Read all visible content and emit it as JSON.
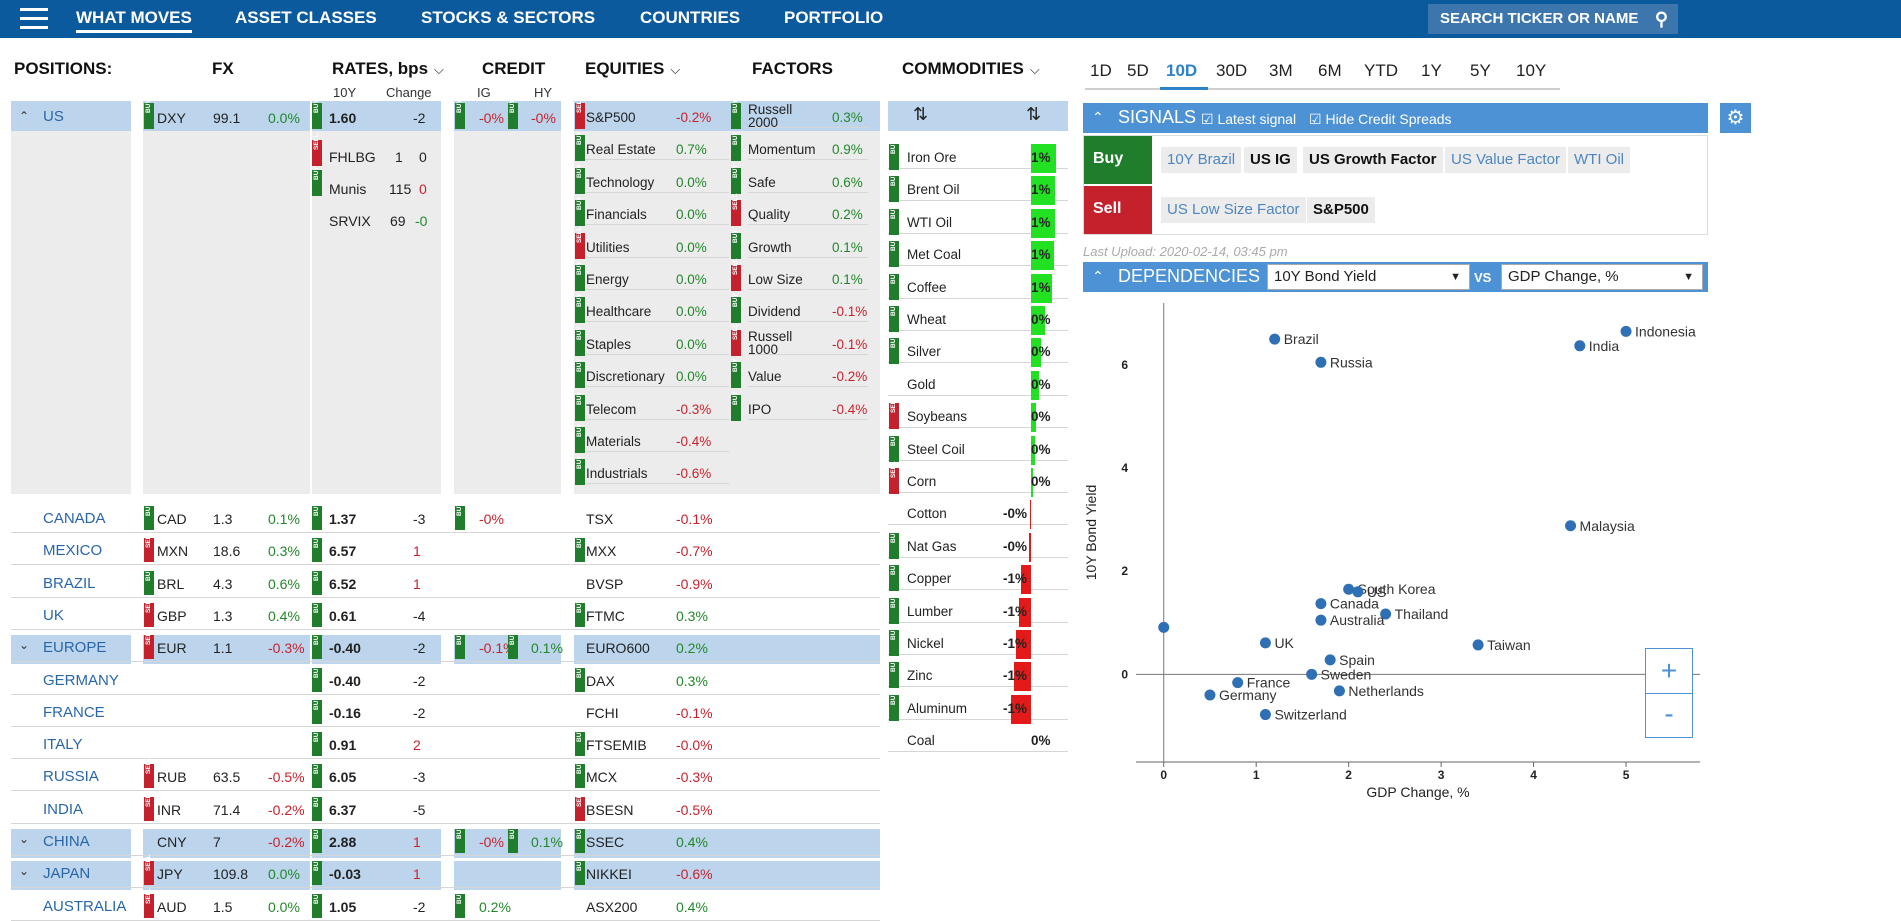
{
  "nav": {
    "items": [
      "WHAT MOVES",
      "ASSET CLASSES",
      "STOCKS & SECTORS",
      "COUNTRIES",
      "PORTFOLIO"
    ],
    "search_label": "SEARCH TICKER OR NAME"
  },
  "headers": {
    "positions": "POSITIONS:",
    "fx": "FX",
    "rates": "RATES, bps",
    "rates_10y": "10Y",
    "rates_change": "Change",
    "credit": "CREDIT",
    "credit_ig": "IG",
    "credit_hy": "HY",
    "equities": "EQUITIES",
    "factors": "FACTORS",
    "commodities": "COMMODITIES"
  },
  "tags": {
    "buy": "BUY",
    "sell": "SELL"
  },
  "us_block": {
    "country": "US",
    "fx": {
      "ticker": "DXY",
      "value": "99.1",
      "change": "0.0%"
    },
    "rates": [
      {
        "name": "",
        "value": "1.60",
        "change": "-2"
      },
      {
        "name": "FHLBG",
        "value": "1",
        "change": "0"
      },
      {
        "name": "Munis",
        "value": "115",
        "change": "0"
      },
      {
        "name": "SRVIX",
        "value": "69",
        "change": "-0"
      }
    ],
    "credit": {
      "ig": "-0%",
      "hy": "-0%"
    },
    "equities": [
      {
        "name": "S&P500",
        "value": "-0.2%"
      },
      {
        "name": "Real Estate",
        "value": "0.7%"
      },
      {
        "name": "Technology",
        "value": "0.0%"
      },
      {
        "name": "Financials",
        "value": "0.0%"
      },
      {
        "name": "Utilities",
        "value": "0.0%"
      },
      {
        "name": "Energy",
        "value": "0.0%"
      },
      {
        "name": "Healthcare",
        "value": "0.0%"
      },
      {
        "name": "Staples",
        "value": "0.0%"
      },
      {
        "name": "Discretionary",
        "value": "0.0%"
      },
      {
        "name": "Telecom",
        "value": "-0.3%"
      },
      {
        "name": "Materials",
        "value": "-0.4%"
      },
      {
        "name": "Industrials",
        "value": "-0.6%"
      }
    ],
    "factors": [
      {
        "name": "Russell 2000",
        "value": "0.3%"
      },
      {
        "name": "Momentum",
        "value": "0.9%"
      },
      {
        "name": "Safe",
        "value": "0.6%"
      },
      {
        "name": "Quality",
        "value": "0.2%"
      },
      {
        "name": "Growth",
        "value": "0.1%"
      },
      {
        "name": "Low Size",
        "value": "0.1%"
      },
      {
        "name": "Dividend",
        "value": "-0.1%"
      },
      {
        "name": "Russell 1000",
        "value": "-0.1%"
      },
      {
        "name": "Value",
        "value": "-0.2%"
      },
      {
        "name": "IPO",
        "value": "-0.4%"
      }
    ]
  },
  "country_rows": [
    {
      "country": "CANADA",
      "fx_ticker": "CAD",
      "fx_value": "1.3",
      "fx_change": "0.1%",
      "rate": "1.37",
      "rate_change": "-3",
      "ig": "-0%",
      "hy": "",
      "equity": "TSX",
      "equity_change": "-0.1%"
    },
    {
      "country": "MEXICO",
      "fx_ticker": "MXN",
      "fx_value": "18.6",
      "fx_change": "0.3%",
      "rate": "6.57",
      "rate_change": "1",
      "ig": "",
      "hy": "",
      "equity": "MXX",
      "equity_change": "-0.7%"
    },
    {
      "country": "BRAZIL",
      "fx_ticker": "BRL",
      "fx_value": "4.3",
      "fx_change": "0.6%",
      "rate": "6.52",
      "rate_change": "1",
      "ig": "",
      "hy": "",
      "equity": "BVSP",
      "equity_change": "-0.9%"
    },
    {
      "country": "UK",
      "fx_ticker": "GBP",
      "fx_value": "1.3",
      "fx_change": "0.4%",
      "rate": "0.61",
      "rate_change": "-4",
      "ig": "",
      "hy": "",
      "equity": "FTMC",
      "equity_change": "0.3%"
    },
    {
      "country": "EUROPE",
      "fx_ticker": "EUR",
      "fx_value": "1.1",
      "fx_change": "-0.3%",
      "rate": "-0.40",
      "rate_change": "-2",
      "ig": "-0.1%",
      "hy": "0.1%",
      "equity": "EURO600",
      "equity_change": "0.2%"
    },
    {
      "country": "GERMANY",
      "fx_ticker": "",
      "fx_value": "",
      "fx_change": "",
      "rate": "-0.40",
      "rate_change": "-2",
      "ig": "",
      "hy": "",
      "equity": "DAX",
      "equity_change": "0.3%"
    },
    {
      "country": "FRANCE",
      "fx_ticker": "",
      "fx_value": "",
      "fx_change": "",
      "rate": "-0.16",
      "rate_change": "-2",
      "ig": "",
      "hy": "",
      "equity": "FCHI",
      "equity_change": "-0.1%"
    },
    {
      "country": "ITALY",
      "fx_ticker": "",
      "fx_value": "",
      "fx_change": "",
      "rate": "0.91",
      "rate_change": "2",
      "ig": "",
      "hy": "",
      "equity": "FTSEMIB",
      "equity_change": "-0.0%"
    },
    {
      "country": "RUSSIA",
      "fx_ticker": "RUB",
      "fx_value": "63.5",
      "fx_change": "-0.5%",
      "rate": "6.05",
      "rate_change": "-3",
      "ig": "",
      "hy": "",
      "equity": "MCX",
      "equity_change": "-0.3%"
    },
    {
      "country": "INDIA",
      "fx_ticker": "INR",
      "fx_value": "71.4",
      "fx_change": "-0.2%",
      "rate": "6.37",
      "rate_change": "-5",
      "ig": "",
      "hy": "",
      "equity": "BSESN",
      "equity_change": "-0.5%"
    },
    {
      "country": "CHINA",
      "fx_ticker": "CNY",
      "fx_value": "7",
      "fx_change": "-0.2%",
      "rate": "2.88",
      "rate_change": "1",
      "ig": "-0%",
      "hy": "0.1%",
      "equity": "SSEC",
      "equity_change": "0.4%"
    },
    {
      "country": "JAPAN",
      "fx_ticker": "JPY",
      "fx_value": "109.8",
      "fx_change": "0.0%",
      "rate": "-0.03",
      "rate_change": "1",
      "ig": "",
      "hy": "",
      "equity": "NIKKEI",
      "equity_change": "-0.6%"
    },
    {
      "country": "AUSTRALIA",
      "fx_ticker": "AUD",
      "fx_value": "1.5",
      "fx_change": "0.0%",
      "rate": "1.05",
      "rate_change": "-2",
      "ig": "0.2%",
      "hy": "",
      "equity": "ASX200",
      "equity_change": "0.4%"
    }
  ],
  "commodities": [
    {
      "name": "Iron Ore",
      "value": "1%",
      "level": 1
    },
    {
      "name": "Brent Oil",
      "value": "1%",
      "level": 0.97
    },
    {
      "name": "WTI Oil",
      "value": "1%",
      "level": 0.95
    },
    {
      "name": "Met Coal",
      "value": "1%",
      "level": 0.9
    },
    {
      "name": "Coffee",
      "value": "1%",
      "level": 0.85
    },
    {
      "name": "Wheat",
      "value": "0%",
      "level": 0.55
    },
    {
      "name": "Silver",
      "value": "0%",
      "level": 0.4
    },
    {
      "name": "Gold",
      "value": "0%",
      "level": 0.3
    },
    {
      "name": "Soybeans",
      "value": "0%",
      "level": 0.2
    },
    {
      "name": "Steel Coil",
      "value": "0%",
      "level": 0.15
    },
    {
      "name": "Corn",
      "value": "0%",
      "level": 0.08
    },
    {
      "name": "Cotton",
      "value": "-0%",
      "level": -0.05
    },
    {
      "name": "Nat Gas",
      "value": "-0%",
      "level": -0.1
    },
    {
      "name": "Copper",
      "value": "-1%",
      "level": -0.4
    },
    {
      "name": "Lumber",
      "value": "-1%",
      "level": -0.5
    },
    {
      "name": "Nickel",
      "value": "-1%",
      "level": -0.6
    },
    {
      "name": "Zinc",
      "value": "-1%",
      "level": -0.7
    },
    {
      "name": "Aluminum",
      "value": "-1%",
      "level": -0.8
    },
    {
      "name": "Coal",
      "value": "0%",
      "level": 0
    }
  ],
  "timeframes": [
    "1D",
    "5D",
    "10D",
    "30D",
    "3M",
    "6M",
    "YTD",
    "1Y",
    "5Y",
    "10Y"
  ],
  "active_timeframe": "10D",
  "signals": {
    "title": "SIGNALS",
    "latest_signal": "Latest signal",
    "hide_credit": "Hide Credit Spreads",
    "buy_label": "Buy",
    "sell_label": "Sell",
    "buy_items": [
      "10Y Brazil",
      "US IG",
      "US Growth Factor",
      "US Value Factor",
      "WTI Oil"
    ],
    "sell_items": [
      "US Low Size Factor",
      "S&P500"
    ],
    "last_upload": "Last Upload: 2020-02-14, 03:45 pm"
  },
  "dependencies": {
    "title": "DEPENDENCIES",
    "y_select": "10Y Bond Yield",
    "vs": "VS",
    "x_select": "GDP Change, %"
  },
  "zoom": {
    "plus": "+",
    "minus": "-"
  },
  "colors": {
    "nav": "#0c5a9e",
    "buy": "#1f7d2c",
    "sell": "#c4212c",
    "accent": "#4d92d4",
    "point": "#2f6fb4"
  },
  "chart_data": {
    "type": "scatter",
    "xlabel": "GDP Change, %",
    "ylabel": "10Y Bond Yield",
    "xlim": [
      -0.3,
      5.8
    ],
    "ylim": [
      -1.7,
      7.2
    ],
    "xticks": [
      0,
      1,
      2,
      3,
      4,
      5
    ],
    "yticks": [
      0,
      2,
      4,
      6
    ],
    "points": [
      {
        "label": "Brazil",
        "x": 1.2,
        "y": 6.5
      },
      {
        "label": "Russia",
        "x": 1.7,
        "y": 6.05
      },
      {
        "label": "India",
        "x": 4.5,
        "y": 6.37
      },
      {
        "label": "Indonesia",
        "x": 5.0,
        "y": 6.65
      },
      {
        "label": "Malaysia",
        "x": 4.4,
        "y": 2.88
      },
      {
        "label": "South Korea",
        "x": 2.0,
        "y": 1.65
      },
      {
        "label": "US",
        "x": 2.1,
        "y": 1.6
      },
      {
        "label": "Canada",
        "x": 1.7,
        "y": 1.37
      },
      {
        "label": "Thailand",
        "x": 2.4,
        "y": 1.17
      },
      {
        "label": "Australia",
        "x": 1.7,
        "y": 1.05
      },
      {
        "label": "",
        "x": 0.0,
        "y": 0.91
      },
      {
        "label": "UK",
        "x": 1.1,
        "y": 0.61
      },
      {
        "label": "Taiwan",
        "x": 3.4,
        "y": 0.57
      },
      {
        "label": "Spain",
        "x": 1.8,
        "y": 0.28
      },
      {
        "label": "Sweden",
        "x": 1.6,
        "y": 0.0
      },
      {
        "label": "France",
        "x": 0.8,
        "y": -0.16
      },
      {
        "label": "Netherlands",
        "x": 1.9,
        "y": -0.32
      },
      {
        "label": "Germany",
        "x": 0.5,
        "y": -0.4
      },
      {
        "label": "Switzerland",
        "x": 1.1,
        "y": -0.78
      }
    ]
  }
}
